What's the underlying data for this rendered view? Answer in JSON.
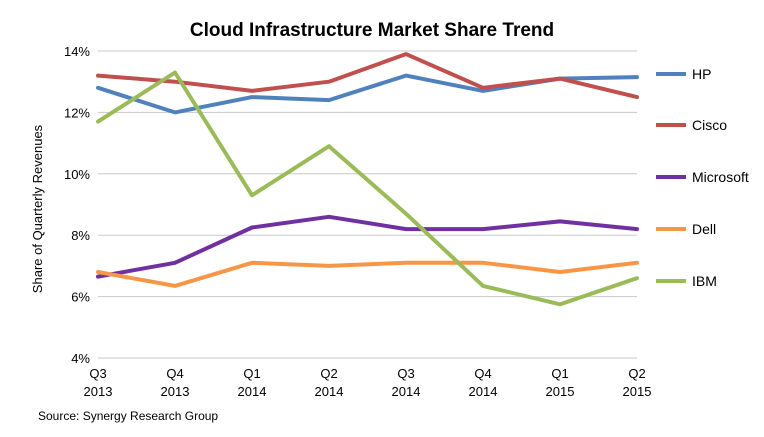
{
  "chart_data": {
    "type": "line",
    "title": "Cloud Infrastructure Market Share Trend",
    "xlabel": "",
    "ylabel": "Share of Quarterly Revenues",
    "source": "Source: Synergy Research Group",
    "categories": [
      [
        "Q3",
        "2013"
      ],
      [
        "Q4",
        "2013"
      ],
      [
        "Q1",
        "2014"
      ],
      [
        "Q2",
        "2014"
      ],
      [
        "Q3",
        "2014"
      ],
      [
        "Q4",
        "2014"
      ],
      [
        "Q1",
        "2015"
      ],
      [
        "Q2",
        "2015"
      ]
    ],
    "ylim": [
      4,
      14
    ],
    "yticks": [
      4,
      6,
      8,
      10,
      12,
      14
    ],
    "ytick_labels": [
      "4%",
      "6%",
      "8%",
      "10%",
      "12%",
      "14%"
    ],
    "grid": true,
    "legend_position": "right",
    "series": [
      {
        "name": "HP",
        "color": "#4f81bd",
        "values": [
          12.8,
          12.0,
          12.5,
          12.4,
          13.2,
          12.7,
          13.1,
          13.15
        ]
      },
      {
        "name": "Cisco",
        "color": "#c0504d",
        "values": [
          13.2,
          13.0,
          12.7,
          13.0,
          13.9,
          12.8,
          13.1,
          12.5
        ]
      },
      {
        "name": "Microsoft",
        "color": "#7030a0",
        "values": [
          6.65,
          7.1,
          8.25,
          8.6,
          8.2,
          8.2,
          8.45,
          8.2
        ]
      },
      {
        "name": "Dell",
        "color": "#f79646",
        "values": [
          6.8,
          6.35,
          7.1,
          7.0,
          7.1,
          7.1,
          6.8,
          7.1
        ]
      },
      {
        "name": "IBM",
        "color": "#9bbb59",
        "values": [
          11.7,
          13.3,
          9.3,
          10.9,
          8.7,
          6.35,
          5.75,
          6.6
        ]
      }
    ]
  }
}
